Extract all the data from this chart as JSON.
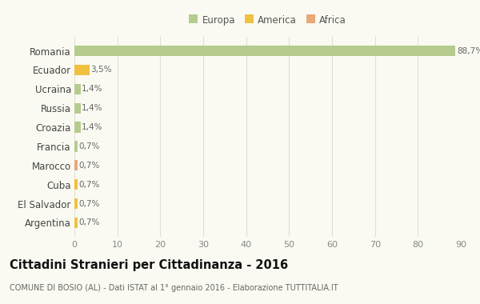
{
  "countries": [
    "Romania",
    "Ecuador",
    "Ucraina",
    "Russia",
    "Croazia",
    "Francia",
    "Marocco",
    "Cuba",
    "El Salvador",
    "Argentina"
  ],
  "values": [
    88.7,
    3.5,
    1.4,
    1.4,
    1.4,
    0.7,
    0.7,
    0.7,
    0.7,
    0.7
  ],
  "labels": [
    "88,7%",
    "3,5%",
    "1,4%",
    "1,4%",
    "1,4%",
    "0,7%",
    "0,7%",
    "0,7%",
    "0,7%",
    "0,7%"
  ],
  "colors": [
    "#b5cc8e",
    "#f0c040",
    "#b5cc8e",
    "#b5cc8e",
    "#b5cc8e",
    "#b5cc8e",
    "#e8a878",
    "#f0c040",
    "#f0c040",
    "#f0c040"
  ],
  "legend": [
    {
      "label": "Europa",
      "color": "#b5cc8e"
    },
    {
      "label": "America",
      "color": "#f0c040"
    },
    {
      "label": "Africa",
      "color": "#e8a878"
    }
  ],
  "title": "Cittadini Stranieri per Cittadinanza - 2016",
  "subtitle": "COMUNE DI BOSIO (AL) - Dati ISTAT al 1° gennaio 2016 - Elaborazione TUTTITALIA.IT",
  "xlim": [
    0,
    90
  ],
  "xticks": [
    0,
    10,
    20,
    30,
    40,
    50,
    60,
    70,
    80,
    90
  ],
  "background_color": "#fafaf2",
  "grid_color": "#e0e0d0",
  "bar_height": 0.55
}
